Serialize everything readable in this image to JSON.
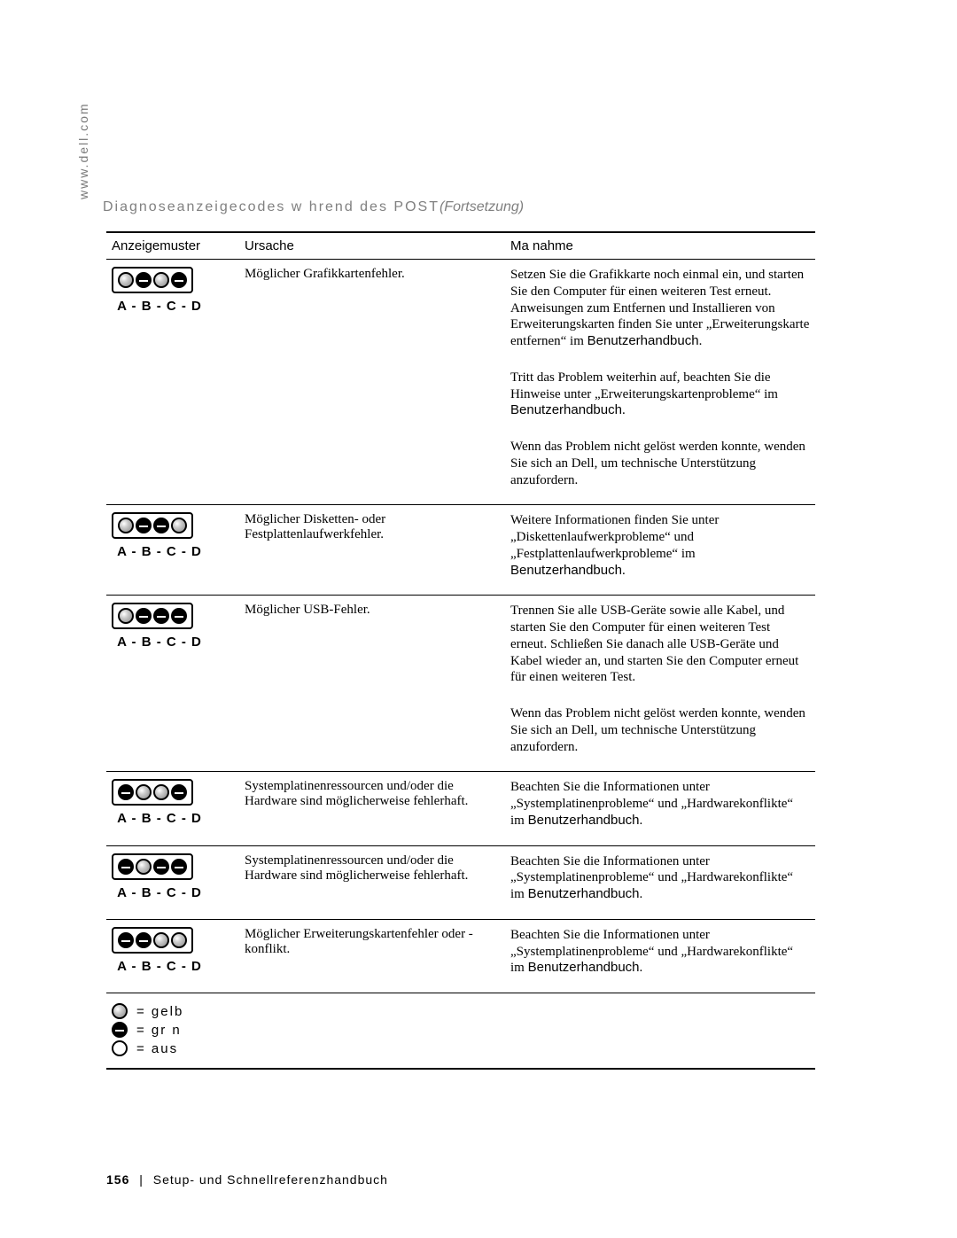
{
  "side_url": "www.dell.com",
  "title_main": "Diagnoseanzeigecodes w hrend des POST",
  "title_cont": "(Fortsetzung)",
  "manual_ref": "Benutzerhandbuch",
  "headers": {
    "pattern": "Anzeigemuster",
    "cause": "Ursache",
    "action": "Ma nahme"
  },
  "abcd_label": "A - B - C - D",
  "led_colors": {
    "yellow": "#bdbdbd",
    "green": "#000000",
    "off": "#ffffff",
    "border": "#000000"
  },
  "rows": [
    {
      "pattern": [
        "yellow",
        "green",
        "yellow",
        "green"
      ],
      "cause": "Möglicher Grafikkartenfehler.",
      "actions": [
        "Setzen Sie die Grafikkarte noch einmal ein, und starten Sie den Computer für einen weiteren Test erneut. Anweisungen zum Entfernen und Installieren von Erweiterungskarten finden Sie unter „Erweiterungskarte entfernen“ im ",
        "Tritt das Problem weiterhin auf, beachten Sie die Hinweise unter „Erweiterungskartenprobleme“ im ",
        "Wenn das Problem nicht gelöst werden konnte, wenden Sie sich an Dell, um technische Unterstützung anzufordern."
      ],
      "action_has_manual_ref": [
        true,
        true,
        false
      ]
    },
    {
      "pattern": [
        "yellow",
        "green",
        "green",
        "yellow"
      ],
      "cause": "Möglicher Disketten- oder Festplattenlaufwerkfehler.",
      "actions": [
        "Weitere Informationen finden Sie unter „Diskettenlaufwerkprobleme“ und „Festplattenlaufwerkprobleme“ im "
      ],
      "action_has_manual_ref": [
        true
      ]
    },
    {
      "pattern": [
        "yellow",
        "green",
        "green",
        "green"
      ],
      "cause": "Möglicher USB-Fehler.",
      "actions": [
        "Trennen Sie alle USB-Geräte sowie alle Kabel, und starten Sie den Computer für einen weiteren Test erneut. Schließen Sie danach alle USB-Geräte und Kabel wieder an, und starten Sie den Computer erneut für einen weiteren Test.",
        "Wenn das Problem nicht gelöst werden konnte, wenden Sie sich an Dell, um technische Unterstützung anzufordern."
      ],
      "action_has_manual_ref": [
        false,
        false
      ]
    },
    {
      "pattern": [
        "green",
        "yellow",
        "yellow",
        "green"
      ],
      "cause": "Systemplatinenressourcen und/oder die Hardware sind möglicherweise fehlerhaft.",
      "actions": [
        "Beachten Sie die Informationen unter „Systemplatinenprobleme“ und „Hardwarekonflikte“ im "
      ],
      "action_has_manual_ref": [
        true
      ]
    },
    {
      "pattern": [
        "green",
        "yellow",
        "green",
        "green"
      ],
      "cause": "Systemplatinenressourcen und/oder die Hardware sind möglicherweise fehlerhaft.",
      "actions": [
        "Beachten Sie die Informationen unter „Systemplatinenprobleme“ und „Hardwarekonflikte“ im "
      ],
      "action_has_manual_ref": [
        true
      ]
    },
    {
      "pattern": [
        "green",
        "green",
        "yellow",
        "yellow"
      ],
      "cause": "Möglicher Erweiterungskartenfehler oder -konflikt.",
      "actions": [
        "Beachten Sie die Informationen unter „Systemplatinenprobleme“ und „Hardwarekonflikte“ im "
      ],
      "action_has_manual_ref": [
        true
      ]
    }
  ],
  "legend": [
    {
      "state": "yellow",
      "label": "= gelb"
    },
    {
      "state": "green",
      "label": "= gr n"
    },
    {
      "state": "off",
      "label": "= aus"
    }
  ],
  "footer": {
    "page_number": "156",
    "divider": "|",
    "book": "Setup- und Schnellreferenzhandbuch"
  }
}
